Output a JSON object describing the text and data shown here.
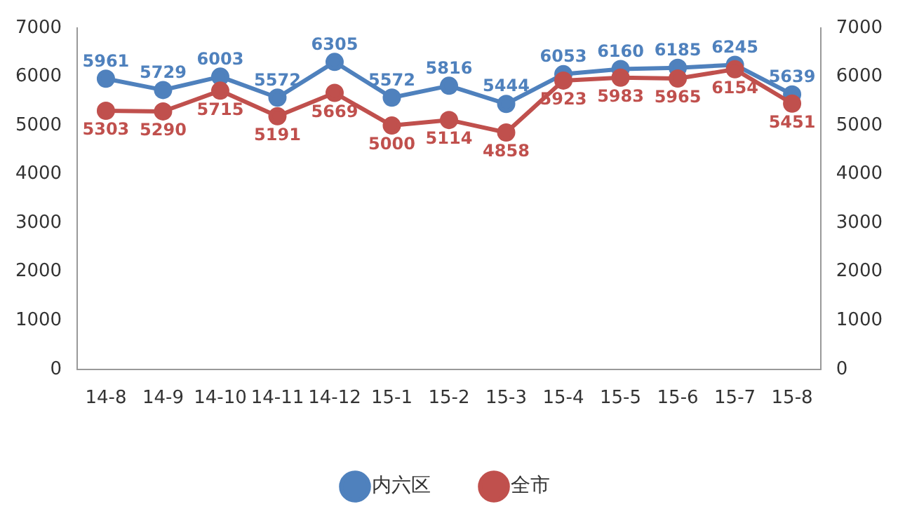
{
  "chart_data": {
    "type": "line",
    "categories": [
      "14-8",
      "14-9",
      "14-10",
      "14-11",
      "14-12",
      "15-1",
      "15-2",
      "15-3",
      "15-4",
      "15-5",
      "15-6",
      "15-7",
      "15-8"
    ],
    "series": [
      {
        "name": "内六区",
        "color": "#4f81bd",
        "values": [
          5961,
          5729,
          6003,
          5572,
          6305,
          5572,
          5816,
          5444,
          6053,
          6160,
          6185,
          6245,
          5639
        ]
      },
      {
        "name": "全市",
        "color": "#c0504d",
        "values": [
          5303,
          5290,
          5715,
          5191,
          5669,
          5000,
          5114,
          4858,
          5923,
          5983,
          5965,
          6154,
          5451
        ]
      }
    ],
    "ylim": [
      0,
      7000
    ],
    "yticks": [
      0,
      1000,
      2000,
      3000,
      4000,
      5000,
      6000,
      7000
    ],
    "y2lim": [
      0,
      7000
    ],
    "y2ticks": [
      0,
      1000,
      2000,
      3000,
      4000,
      5000,
      6000,
      7000
    ],
    "grid": false,
    "legend": "bottom",
    "marker": "circle",
    "line_style": "solid",
    "data_labels": true
  }
}
